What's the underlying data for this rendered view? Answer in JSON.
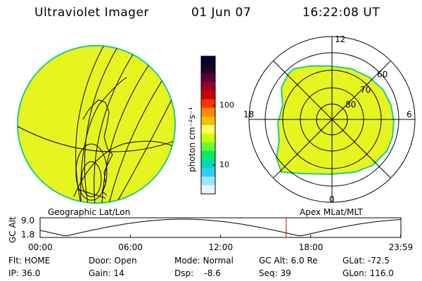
{
  "header": {
    "title": "Ultraviolet Imager",
    "date": "01 Jun 07",
    "time": "16:22:08 UT"
  },
  "panels": {
    "left_label": "Geographic Lat/Lon",
    "right_label": "Apex MLat/MLT"
  },
  "colorbar": {
    "label": "photon cm⁻²s⁻¹",
    "ticks": [
      "100",
      "10"
    ],
    "colors": [
      "#000033",
      "#220022",
      "#550033",
      "#990022",
      "#cc0000",
      "#ff3300",
      "#ff8800",
      "#ffbb00",
      "#ffff66",
      "#ccff00",
      "#66ff33",
      "#00ee66",
      "#00ddaa",
      "#33ccff",
      "#99e6ff",
      "#e8f8ff"
    ]
  },
  "polar": {
    "mlt_labels": {
      "top": "12",
      "bottom": "0",
      "left": "18",
      "right": "6"
    },
    "lat_labels": [
      "60",
      "70",
      "80"
    ]
  },
  "altitude_plot": {
    "ylabel": "GC Alt",
    "yticks": [
      "9.0",
      "1.8"
    ],
    "xticks": [
      "00:00",
      "06:00",
      "12:00",
      "18:00",
      "23:59"
    ],
    "marker_time_hours": 16.37,
    "marker_color": "#cc0000"
  },
  "info": {
    "row1": [
      "Flt: HOME",
      "Door: Open",
      "Mode: Normal",
      "GC Alt: 6.0 Re",
      "GLat: -72.5"
    ],
    "row2": [
      "IP: 36.0",
      "Gain: 14",
      "Dsp:    -8.6",
      "Seq: 39",
      "GLon: 116.0"
    ]
  },
  "image_color": "#e6f520",
  "edge_color": "#22cc88"
}
